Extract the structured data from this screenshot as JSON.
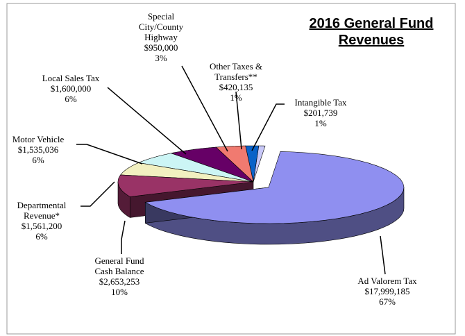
{
  "chart_data": {
    "type": "pie",
    "title": "2016 General Fund Revenues",
    "categories": [
      "Ad Valorem Tax",
      "General Fund\nCash Balance",
      "Departmental\nRevenue*",
      "Motor Vehicle",
      "Local Sales Tax",
      "Special\nCity/County\nHighway",
      "Other Taxes &\nTransfers**",
      "Intangible Tax"
    ],
    "values": [
      17999185,
      2653253,
      1561200,
      1535036,
      1600000,
      950000,
      420135,
      201739
    ],
    "value_labels": [
      "$17,999,185",
      "$2,653,253",
      "$1,561,200",
      "$1,535,036",
      "$1,600,000",
      "$950,000",
      "$420,135",
      "$201,739"
    ],
    "percents": [
      67,
      10,
      6,
      6,
      6,
      3,
      1,
      1
    ],
    "percent_labels": [
      "67%",
      "10%",
      "6%",
      "6%",
      "6%",
      "3%",
      "1%",
      "1%"
    ],
    "colors": [
      "#8f8ff0",
      "#993366",
      "#f2f0c0",
      "#ccf5f5",
      "#660066",
      "#f07a70",
      "#0a62c8",
      "#c8c8f8"
    ]
  }
}
